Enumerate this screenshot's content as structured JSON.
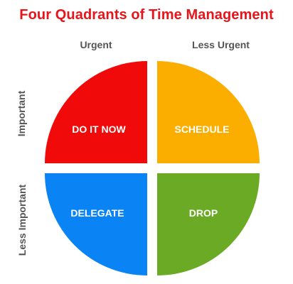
{
  "title": "Four Quadrants of Time Management",
  "columns": {
    "urgent": "Urgent",
    "less_urgent": "Less Urgent"
  },
  "rows": {
    "important": "Important",
    "less_important": "Less Important"
  },
  "quadrants": [
    {
      "label": "DO IT NOW",
      "color": "#f10a0a"
    },
    {
      "label": "SCHEDULE",
      "color": "#fcae00"
    },
    {
      "label": "DELEGATE",
      "color": "#0a84f5"
    },
    {
      "label": "DROP",
      "color": "#6aaa24"
    }
  ],
  "title_color": "#e8141b",
  "label_color": "#555555"
}
